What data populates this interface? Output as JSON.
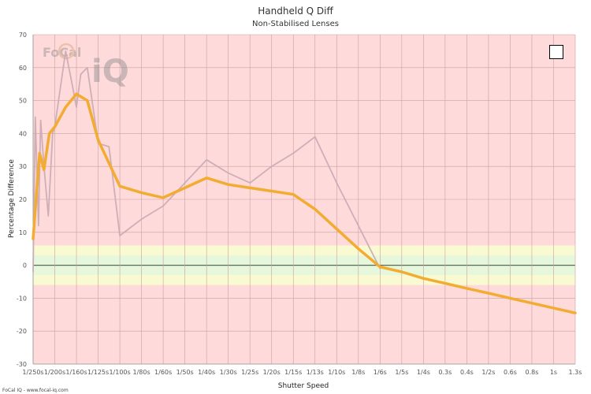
{
  "chart_data": {
    "type": "line",
    "title": "Handheld Q Diff",
    "subtitle": "Non-Stabilised Lenses",
    "xlabel": "Shutter Speed",
    "ylabel": "Percentage Difference",
    "x_tick_labels": [
      "1/250s",
      "1/200s",
      "1/160s",
      "1/125s",
      "1/100s",
      "1/80s",
      "1/60s",
      "1/50s",
      "1/40s",
      "1/30s",
      "1/25s",
      "1/20s",
      "1/15s",
      "1/13s",
      "1/10s",
      "1/8s",
      "1/6s",
      "1/5s",
      "1/4s",
      "0.3s",
      "0.4s",
      "1/2s",
      "0.6s",
      "0.8s",
      "1s",
      "1.3s"
    ],
    "ylim": [
      -30,
      70
    ],
    "yticks": [
      -30,
      -20,
      -10,
      0,
      10,
      20,
      30,
      40,
      50,
      60,
      70
    ],
    "bands": [
      {
        "from": -6,
        "to": 6,
        "color": "#fafad2"
      },
      {
        "from": -3,
        "to": 3,
        "color": "#e6f7dc"
      }
    ],
    "background_color": "#ffdada",
    "series": [
      {
        "name": "",
        "color": "#f2ac31",
        "x": [
          0,
          0.1,
          0.3,
          0.5,
          0.75,
          1.0,
          1.5,
          2.0,
          2.5,
          3.0,
          3.5,
          4.0,
          5.0,
          6.0,
          7.0,
          8.0,
          9.0,
          10.0,
          11.0,
          12.0,
          13.0,
          14.0,
          15.0,
          16.0,
          17.0,
          18.0,
          19.0,
          20.0,
          21.0,
          22.0,
          23.0,
          24.0,
          25.0
        ],
        "y": [
          8,
          17,
          34,
          29,
          40,
          42,
          48,
          52,
          50,
          38,
          31,
          24,
          22,
          20.5,
          23.5,
          26.5,
          24.5,
          23.5,
          22.5,
          21.5,
          17,
          11,
          5,
          -0.5,
          -2,
          -4,
          -5.5,
          -7,
          -8.5,
          -10,
          -11.5,
          -13,
          -14.5
        ]
      },
      {
        "name": "",
        "color": "#c9aab4",
        "x": [
          0,
          0.1,
          0.25,
          0.35,
          0.5,
          0.7,
          0.9,
          1.0,
          1.5,
          1.8,
          2.0,
          2.2,
          2.5,
          3.0,
          3.5,
          4.0,
          5.0,
          6.0,
          7.0,
          8.0,
          9.0,
          10.0,
          11.0,
          12.0,
          13.0,
          14.0,
          15.0,
          16.0
        ],
        "y": [
          -2,
          45,
          12,
          44,
          30,
          15,
          40,
          42,
          65,
          55,
          48,
          58,
          60,
          37,
          36,
          9,
          14,
          18,
          25,
          32,
          28,
          25,
          30,
          34,
          39,
          25,
          12,
          -1
        ]
      }
    ]
  },
  "watermark": {
    "text": "FoCal",
    "mark": "iQ"
  },
  "credit": "FoCal IQ - www.focal-iq.com"
}
